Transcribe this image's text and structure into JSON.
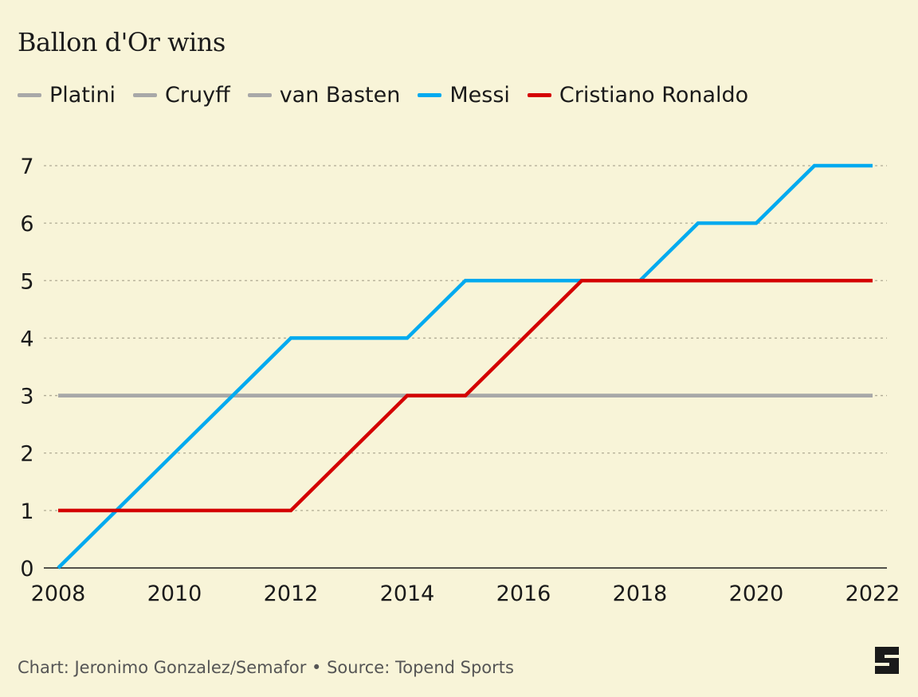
{
  "chart_data": {
    "type": "line",
    "title": "Ballon d'Or wins",
    "xlabel": "",
    "ylabel": "",
    "xlim": [
      2008,
      2022
    ],
    "ylim": [
      0,
      7
    ],
    "x_ticks": [
      "2008",
      "2010",
      "2012",
      "2014",
      "2016",
      "2018",
      "2020",
      "2022"
    ],
    "y_ticks": [
      "0",
      "1",
      "2",
      "3",
      "4",
      "5",
      "6",
      "7"
    ],
    "grid": "horizontal dashed",
    "legend_position": "top-left",
    "x": [
      2008,
      2009,
      2010,
      2011,
      2012,
      2013,
      2014,
      2015,
      2016,
      2017,
      2018,
      2019,
      2020,
      2021,
      2022
    ],
    "series": [
      {
        "name": "Platini",
        "color": "#a8a8a8",
        "values": [
          3,
          3,
          3,
          3,
          3,
          3,
          3,
          3,
          3,
          3,
          3,
          3,
          3,
          3,
          3
        ]
      },
      {
        "name": "Cruyff",
        "color": "#a8a8a8",
        "values": [
          3,
          3,
          3,
          3,
          3,
          3,
          3,
          3,
          3,
          3,
          3,
          3,
          3,
          3,
          3
        ]
      },
      {
        "name": "van Basten",
        "color": "#a8a8a8",
        "values": [
          3,
          3,
          3,
          3,
          3,
          3,
          3,
          3,
          3,
          3,
          3,
          3,
          3,
          3,
          3
        ]
      },
      {
        "name": "Messi",
        "color": "#00aaef",
        "values": [
          0,
          1,
          2,
          3,
          4,
          4,
          4,
          5,
          5,
          5,
          5,
          6,
          6,
          7,
          7
        ]
      },
      {
        "name": "Cristiano Ronaldo",
        "color": "#d40000",
        "values": [
          1,
          1,
          1,
          1,
          1,
          2,
          3,
          3,
          4,
          5,
          5,
          5,
          5,
          5,
          5
        ]
      }
    ]
  },
  "footer": {
    "credit": "Chart: Jeronimo Gonzalez/Semafor • Source: Topend Sports"
  },
  "logo": {
    "icon": "semafor-logo",
    "color": "#1a1a1a"
  }
}
